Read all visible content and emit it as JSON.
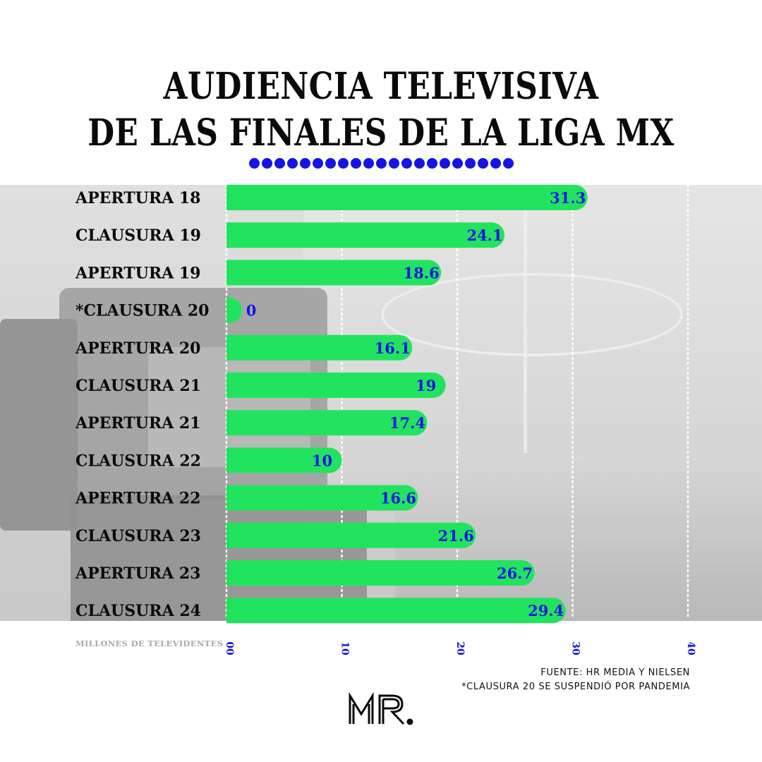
{
  "title_lines": [
    "AUDIENCIA TELEVISIVA",
    "DE LAS FINALES DE LA LIGA MX"
  ],
  "decoration_dots": 21,
  "axis_label": "MILLONES DE TELEVIDENTES",
  "source": {
    "line1": "FUENTE: HR MEDIA Y NIELSEN",
    "line2": "*CLAUSURA 20 SE SUSPENDIÓ POR PANDEMIA"
  },
  "logo_text": "MR.",
  "colors": {
    "bar": "#22e35e",
    "value_text": "#1414e6",
    "title": "#0a0a0a",
    "grid": "#ffffff",
    "dots": "#1414e6"
  },
  "chart_data": {
    "type": "bar",
    "orientation": "horizontal",
    "categories": [
      "APERTURA 18",
      "CLAUSURA 19",
      "APERTURA 19",
      "*CLAUSURA 20",
      "APERTURA 20",
      "CLAUSURA 21",
      "APERTURA 21",
      "CLAUSURA 22",
      "APERTURA 22",
      "CLAUSURA 23",
      "APERTURA 23",
      "CLAUSURA 24"
    ],
    "values": [
      31.3,
      24.1,
      18.6,
      0,
      16.1,
      19,
      17.4,
      10,
      16.6,
      21.6,
      26.7,
      29.4
    ],
    "value_labels": [
      "31.3",
      "24.1",
      "18.6",
      "0",
      "16.1",
      "19",
      "17.4",
      "10",
      "16.6",
      "21.6",
      "26.7",
      "29.4"
    ],
    "xlim": [
      0,
      40
    ],
    "xticks": [
      0,
      10,
      20,
      30,
      40
    ],
    "xtick_labels": [
      "00",
      "10",
      "20",
      "30",
      "40"
    ],
    "xlabel": "MILLONES DE TELEVIDENTES",
    "grid": "vertical dotted",
    "legend": "none"
  }
}
